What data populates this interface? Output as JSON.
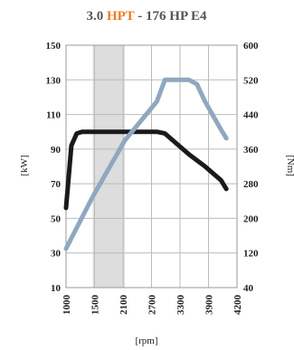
{
  "chart_data": {
    "type": "line",
    "title": {
      "prefix": "3.0 ",
      "highlight": "HPT",
      "suffix": " - 176 HP E4"
    },
    "xlabel": "[rpm]",
    "ylabel_left": "[kW]",
    "ylabel_right": "[Nm]",
    "xlim": [
      1000,
      4200
    ],
    "ylim_left": [
      10,
      150
    ],
    "ylim_right": [
      40,
      600
    ],
    "x_ticks": [
      "1000",
      "1500",
      "2100",
      "2700",
      "3300",
      "3900",
      "4200"
    ],
    "y_ticks_left": [
      "150",
      "130",
      "110",
      "90",
      "70",
      "50",
      "30",
      "10"
    ],
    "y_ticks_right": [
      "600",
      "520",
      "440",
      "360",
      "280",
      "200",
      "120",
      "40"
    ],
    "shaded_band": {
      "x_start": 1500,
      "x_end": 2100
    },
    "grid": true,
    "series": [
      {
        "axis": "left",
        "color": "#1a1a1a",
        "x": [
          1000,
          1100,
          1200,
          1300,
          1500,
          2100,
          2700,
          2850,
          3000,
          3300,
          3600,
          3900,
          4000
        ],
        "y": [
          56,
          92,
          99,
          100,
          100,
          100,
          100,
          99,
          95,
          87,
          80,
          72,
          67
        ]
      },
      {
        "axis": "right",
        "color": "#8fa8c0",
        "x": [
          1000,
          1500,
          2100,
          2700,
          2850,
          3300,
          3450,
          3600,
          3900,
          4000
        ],
        "y": [
          130,
          250,
          380,
          470,
          520,
          520,
          510,
          470,
          405,
          385
        ]
      }
    ]
  }
}
